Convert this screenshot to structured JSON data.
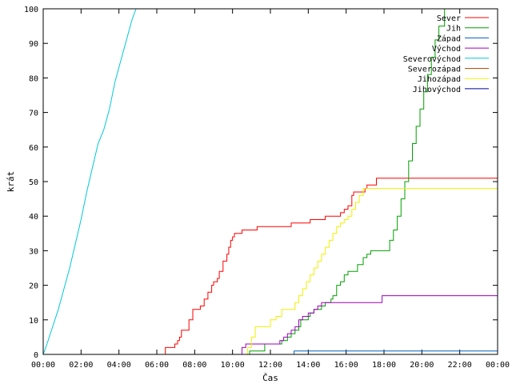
{
  "chart_data": {
    "type": "line",
    "xlabel": "Čas",
    "ylabel": "krát",
    "xlim": [
      0,
      24
    ],
    "ylim": [
      0,
      100
    ],
    "x_ticks": [
      {
        "value": 0,
        "label": "00:00"
      },
      {
        "value": 2,
        "label": "02:00"
      },
      {
        "value": 4,
        "label": "04:00"
      },
      {
        "value": 6,
        "label": "06:00"
      },
      {
        "value": 8,
        "label": "08:00"
      },
      {
        "value": 10,
        "label": "10:00"
      },
      {
        "value": 12,
        "label": "12:00"
      },
      {
        "value": 14,
        "label": "14:00"
      },
      {
        "value": 16,
        "label": "16:00"
      },
      {
        "value": 18,
        "label": "18:00"
      },
      {
        "value": 20,
        "label": "20:00"
      },
      {
        "value": 22,
        "label": "22:00"
      },
      {
        "value": 24,
        "label": "00:00"
      }
    ],
    "y_ticks": [
      {
        "value": 0,
        "label": "0"
      },
      {
        "value": 10,
        "label": "10"
      },
      {
        "value": 20,
        "label": "20"
      },
      {
        "value": 30,
        "label": "30"
      },
      {
        "value": 40,
        "label": "40"
      },
      {
        "value": 50,
        "label": "50"
      },
      {
        "value": 60,
        "label": "60"
      },
      {
        "value": 70,
        "label": "70"
      },
      {
        "value": 80,
        "label": "80"
      },
      {
        "value": 90,
        "label": "90"
      },
      {
        "value": 100,
        "label": "100"
      }
    ],
    "grid": false,
    "legend_position": "top-right",
    "x_unit": "hours",
    "series": [
      {
        "name": "Sever",
        "color": "#ff0000",
        "step": true,
        "points": [
          [
            0,
            0
          ],
          [
            6.4,
            0
          ],
          [
            6.45,
            2
          ],
          [
            6.9,
            2
          ],
          [
            6.95,
            3
          ],
          [
            7.1,
            4
          ],
          [
            7.2,
            5
          ],
          [
            7.3,
            7
          ],
          [
            7.6,
            7
          ],
          [
            7.7,
            10
          ],
          [
            7.9,
            13
          ],
          [
            8.2,
            13
          ],
          [
            8.3,
            14
          ],
          [
            8.5,
            16
          ],
          [
            8.7,
            18
          ],
          [
            8.9,
            20
          ],
          [
            9.0,
            21
          ],
          [
            9.2,
            22
          ],
          [
            9.3,
            24
          ],
          [
            9.5,
            27
          ],
          [
            9.7,
            29
          ],
          [
            9.8,
            31
          ],
          [
            9.9,
            33
          ],
          [
            10.0,
            34
          ],
          [
            10.1,
            35
          ],
          [
            10.4,
            35
          ],
          [
            10.5,
            36
          ],
          [
            11.2,
            36
          ],
          [
            11.3,
            37
          ],
          [
            12.2,
            37
          ],
          [
            12.3,
            37
          ],
          [
            13.0,
            37
          ],
          [
            13.1,
            38
          ],
          [
            14.0,
            38
          ],
          [
            14.1,
            39
          ],
          [
            14.8,
            39
          ],
          [
            14.9,
            40
          ],
          [
            15.6,
            40
          ],
          [
            15.7,
            41
          ],
          [
            15.9,
            42
          ],
          [
            16.1,
            43
          ],
          [
            16.3,
            46
          ],
          [
            16.4,
            47
          ],
          [
            16.9,
            47
          ],
          [
            17.0,
            48
          ],
          [
            17.1,
            49
          ],
          [
            17.5,
            49
          ],
          [
            17.6,
            51
          ],
          [
            24,
            51
          ]
        ]
      },
      {
        "name": "Jih",
        "color": "#00a000",
        "step": true,
        "points": [
          [
            0,
            0
          ],
          [
            10.8,
            0
          ],
          [
            10.9,
            1
          ],
          [
            11.6,
            1
          ],
          [
            11.7,
            3
          ],
          [
            12.5,
            3
          ],
          [
            12.6,
            4
          ],
          [
            12.9,
            5
          ],
          [
            13.1,
            6
          ],
          [
            13.3,
            7
          ],
          [
            13.5,
            8
          ],
          [
            13.6,
            10
          ],
          [
            13.9,
            10
          ],
          [
            14.0,
            11
          ],
          [
            14.1,
            12
          ],
          [
            14.3,
            13
          ],
          [
            14.6,
            13
          ],
          [
            14.7,
            14
          ],
          [
            14.9,
            15
          ],
          [
            15.2,
            16
          ],
          [
            15.3,
            17
          ],
          [
            15.5,
            20
          ],
          [
            15.7,
            21
          ],
          [
            15.9,
            23
          ],
          [
            16.1,
            24
          ],
          [
            16.5,
            24
          ],
          [
            16.6,
            26
          ],
          [
            16.9,
            28
          ],
          [
            17.1,
            29
          ],
          [
            17.3,
            30
          ],
          [
            17.9,
            30
          ],
          [
            18.1,
            30
          ],
          [
            18.3,
            33
          ],
          [
            18.5,
            36
          ],
          [
            18.7,
            40
          ],
          [
            18.9,
            45
          ],
          [
            19.1,
            50
          ],
          [
            19.3,
            56
          ],
          [
            19.5,
            61
          ],
          [
            19.7,
            66
          ],
          [
            19.9,
            71
          ],
          [
            20.1,
            76
          ],
          [
            20.3,
            81
          ],
          [
            20.5,
            86
          ],
          [
            20.7,
            91
          ],
          [
            20.9,
            95
          ],
          [
            21.2,
            100
          ]
        ]
      },
      {
        "name": "Západ",
        "color": "#0060c0",
        "step": true,
        "points": [
          [
            0,
            0
          ],
          [
            13.2,
            0
          ],
          [
            13.25,
            1
          ],
          [
            24,
            1
          ]
        ]
      },
      {
        "name": "Východ",
        "color": "#a000c0",
        "step": true,
        "points": [
          [
            0,
            0
          ],
          [
            10.4,
            0
          ],
          [
            10.5,
            2
          ],
          [
            10.7,
            3
          ],
          [
            12.2,
            3
          ],
          [
            12.3,
            3
          ],
          [
            12.5,
            4
          ],
          [
            12.7,
            5
          ],
          [
            12.9,
            6
          ],
          [
            13.1,
            7
          ],
          [
            13.3,
            8
          ],
          [
            13.5,
            10
          ],
          [
            13.7,
            11
          ],
          [
            14.0,
            12
          ],
          [
            14.3,
            13
          ],
          [
            14.5,
            14
          ],
          [
            14.7,
            15
          ],
          [
            17.8,
            15
          ],
          [
            17.9,
            17
          ],
          [
            24,
            17
          ]
        ]
      },
      {
        "name": "Severovýchod",
        "color": "#00c8d8",
        "step": false,
        "points": [
          [
            0,
            0
          ],
          [
            0.2,
            3
          ],
          [
            0.5,
            8
          ],
          [
            0.8,
            13
          ],
          [
            1.1,
            19
          ],
          [
            1.4,
            25
          ],
          [
            1.7,
            32
          ],
          [
            2.0,
            39
          ],
          [
            2.3,
            47
          ],
          [
            2.6,
            54
          ],
          [
            2.9,
            61
          ],
          [
            3.2,
            65
          ],
          [
            3.5,
            71
          ],
          [
            3.8,
            79
          ],
          [
            4.1,
            85
          ],
          [
            4.4,
            91
          ],
          [
            4.7,
            97
          ],
          [
            4.9,
            100
          ]
        ]
      },
      {
        "name": "Severozápad",
        "color": "#c05000",
        "step": false,
        "points": []
      },
      {
        "name": "Jihozápad",
        "color": "#f0f000",
        "step": true,
        "points": [
          [
            0,
            0
          ],
          [
            10.7,
            0
          ],
          [
            10.8,
            2
          ],
          [
            11.0,
            5
          ],
          [
            11.2,
            8
          ],
          [
            11.9,
            8
          ],
          [
            12.0,
            10
          ],
          [
            12.2,
            10
          ],
          [
            12.3,
            11
          ],
          [
            12.6,
            13
          ],
          [
            13.2,
            13
          ],
          [
            13.3,
            15
          ],
          [
            13.5,
            17
          ],
          [
            13.7,
            19
          ],
          [
            13.9,
            21
          ],
          [
            14.1,
            23
          ],
          [
            14.3,
            25
          ],
          [
            14.5,
            27
          ],
          [
            14.7,
            29
          ],
          [
            14.9,
            31
          ],
          [
            15.1,
            33
          ],
          [
            15.3,
            35
          ],
          [
            15.5,
            37
          ],
          [
            15.7,
            38
          ],
          [
            15.9,
            39
          ],
          [
            16.1,
            40
          ],
          [
            16.3,
            42
          ],
          [
            16.5,
            44
          ],
          [
            16.7,
            46
          ],
          [
            16.9,
            48
          ],
          [
            24,
            48
          ]
        ]
      },
      {
        "name": "Jihovýchod",
        "color": "#0000a0",
        "step": false,
        "points": []
      }
    ]
  }
}
